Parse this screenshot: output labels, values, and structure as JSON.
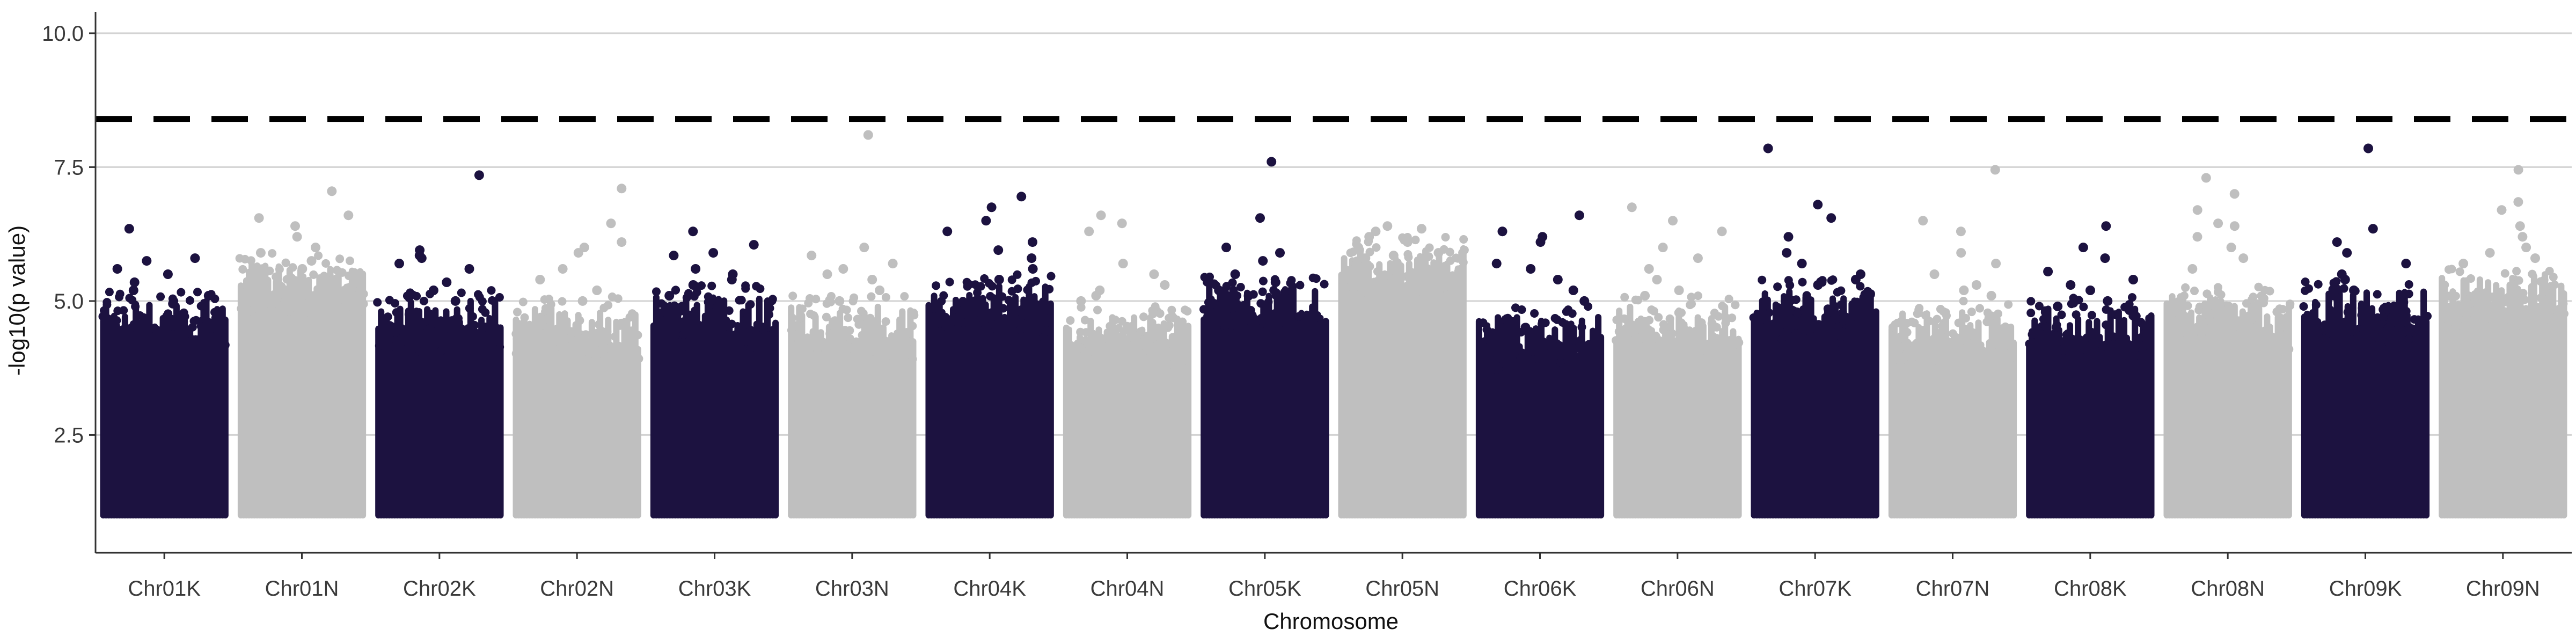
{
  "chart_data": {
    "type": "scatter",
    "subtype": "manhattan",
    "title": "",
    "xlabel": "Chromosome",
    "ylabel": "-log10(p value)",
    "ylim": [
      0.3,
      10.4
    ],
    "y_ticks": [
      2.5,
      5.0,
      7.5,
      10.0
    ],
    "y_tick_labels": [
      "2.5",
      "5.0",
      "7.5",
      "10.0"
    ],
    "grid": "horizontal major lines",
    "legend": "none",
    "significance_threshold": {
      "value": 8.4,
      "style": "dashed black"
    },
    "point_floor": 1.0,
    "colors": {
      "odd": "#1c1240",
      "even": "#bfbfbf",
      "threshold": "#000000"
    },
    "chromosomes": [
      {
        "name": "Chr01K",
        "color_index": 0,
        "typical_max": 4.6,
        "top_values": [
          6.35,
          5.8,
          5.75,
          5.6,
          5.5,
          5.35,
          5.2,
          5.1,
          4.95
        ]
      },
      {
        "name": "Chr01N",
        "color_index": 1,
        "typical_max": 5.3,
        "top_values": [
          7.05,
          6.6,
          6.55,
          6.4,
          6.2,
          6.0,
          5.9,
          5.75,
          5.6
        ]
      },
      {
        "name": "Chr02K",
        "color_index": 0,
        "typical_max": 4.6,
        "top_values": [
          7.35,
          5.95,
          5.85,
          5.8,
          5.7,
          5.6,
          5.35,
          5.2,
          5.0
        ]
      },
      {
        "name": "Chr02N",
        "color_index": 1,
        "typical_max": 4.5,
        "top_values": [
          7.1,
          6.45,
          6.1,
          6.0,
          5.9,
          5.6,
          5.4,
          5.2,
          5.0
        ]
      },
      {
        "name": "Chr03K",
        "color_index": 0,
        "typical_max": 4.7,
        "top_values": [
          6.3,
          6.05,
          5.9,
          5.85,
          5.6,
          5.5,
          5.4,
          5.3,
          5.1
        ]
      },
      {
        "name": "Chr03N",
        "color_index": 1,
        "typical_max": 4.5,
        "top_values": [
          8.1,
          6.0,
          5.85,
          5.7,
          5.6,
          5.5,
          5.4,
          5.2,
          5.0
        ]
      },
      {
        "name": "Chr04K",
        "color_index": 0,
        "typical_max": 4.9,
        "top_values": [
          6.95,
          6.75,
          6.5,
          6.3,
          6.1,
          5.95,
          5.8,
          5.6,
          5.4
        ]
      },
      {
        "name": "Chr04N",
        "color_index": 1,
        "typical_max": 4.3,
        "top_values": [
          6.6,
          6.45,
          6.3,
          5.7,
          5.5,
          5.3,
          5.2,
          5.1,
          5.0
        ]
      },
      {
        "name": "Chr05K",
        "color_index": 0,
        "typical_max": 4.9,
        "top_values": [
          7.6,
          6.55,
          6.0,
          5.9,
          5.75,
          5.5,
          5.35,
          5.2,
          5.1
        ]
      },
      {
        "name": "Chr05N",
        "color_index": 1,
        "typical_max": 5.6,
        "top_values": [
          6.4,
          6.35,
          6.3,
          6.2,
          6.1,
          6.0,
          5.9,
          5.85,
          5.8
        ]
      },
      {
        "name": "Chr06K",
        "color_index": 0,
        "typical_max": 4.3,
        "top_values": [
          6.6,
          6.3,
          6.2,
          6.1,
          5.7,
          5.6,
          5.4,
          5.2,
          5.0
        ]
      },
      {
        "name": "Chr06N",
        "color_index": 1,
        "typical_max": 4.5,
        "top_values": [
          6.75,
          6.5,
          6.3,
          6.0,
          5.8,
          5.6,
          5.4,
          5.2,
          5.1
        ]
      },
      {
        "name": "Chr07K",
        "color_index": 0,
        "typical_max": 4.8,
        "top_values": [
          7.85,
          6.8,
          6.55,
          6.2,
          5.9,
          5.7,
          5.5,
          5.4,
          5.3
        ]
      },
      {
        "name": "Chr07N",
        "color_index": 1,
        "typical_max": 4.4,
        "top_values": [
          7.45,
          6.5,
          6.3,
          5.9,
          5.7,
          5.5,
          5.3,
          5.2,
          5.1
        ]
      },
      {
        "name": "Chr08K",
        "color_index": 0,
        "typical_max": 4.5,
        "top_values": [
          6.4,
          6.0,
          5.8,
          5.55,
          5.4,
          5.3,
          5.2,
          5.0,
          4.9
        ]
      },
      {
        "name": "Chr08N",
        "color_index": 1,
        "typical_max": 4.7,
        "top_values": [
          7.3,
          7.0,
          6.7,
          6.45,
          6.4,
          6.2,
          6.0,
          5.8,
          5.6
        ]
      },
      {
        "name": "Chr09K",
        "color_index": 0,
        "typical_max": 4.8,
        "top_values": [
          7.85,
          6.35,
          6.1,
          5.9,
          5.7,
          5.5,
          5.4,
          5.2,
          5.1
        ]
      },
      {
        "name": "Chr09N",
        "color_index": 1,
        "typical_max": 5.1,
        "top_values": [
          7.45,
          6.85,
          6.7,
          6.4,
          6.2,
          6.0,
          5.9,
          5.8,
          5.7
        ]
      }
    ]
  }
}
